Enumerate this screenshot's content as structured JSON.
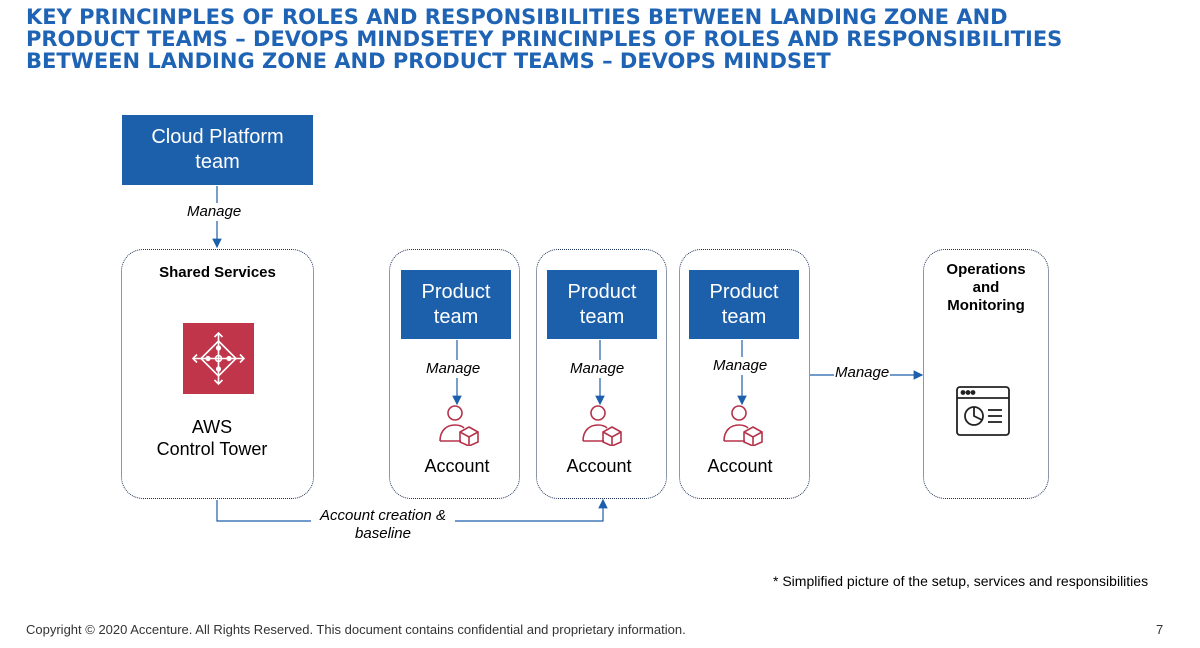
{
  "title": {
    "line1": "KEY PRINCINPLES OF ROLES AND RESPONSIBILITIES BETWEEN LANDING ZONE AND",
    "line2": "PRODUCT TEAMS – DEVOPS MINDSETEY PRINCINPLES OF ROLES AND RESPONSIBILITIES",
    "line3": "BETWEEN LANDING ZONE AND PRODUCT TEAMS – DEVOPS MINDSET"
  },
  "cloud_platform": {
    "line1": "Cloud Platform",
    "line2": "team"
  },
  "manage_label": "Manage",
  "shared_services": {
    "title": "Shared Services",
    "aws_line1": "AWS",
    "aws_line2": "Control Tower",
    "icon": "control-tower-icon"
  },
  "product_columns": [
    {
      "team_line1": "Product",
      "team_line2": "team",
      "manage": "Manage",
      "account": "Account",
      "icon": "account-user-icon"
    },
    {
      "team_line1": "Product",
      "team_line2": "team",
      "manage": "Manage",
      "account": "Account",
      "icon": "account-user-icon"
    },
    {
      "team_line1": "Product",
      "team_line2": "team",
      "manage": "Manage",
      "account": "Account",
      "icon": "account-user-icon"
    }
  ],
  "operations": {
    "line1": "Operations",
    "line2": "and",
    "line3": "Monitoring",
    "manage": "Manage",
    "icon": "dashboard-window-icon"
  },
  "account_creation": {
    "line1": "Account creation &",
    "line2": "baseline"
  },
  "note": "* Simplified picture of the setup, services and responsibilities",
  "footer": "Copyright © 2020 Accenture. All Rights Reserved. This document contains confidential and proprietary information.",
  "page_number": "7",
  "colors": {
    "title": "#1f63b4",
    "team_box": "#1c5fab",
    "aws_icon": "#c0354a",
    "account_icon": "#b5334a",
    "border": "#1b2f55"
  }
}
